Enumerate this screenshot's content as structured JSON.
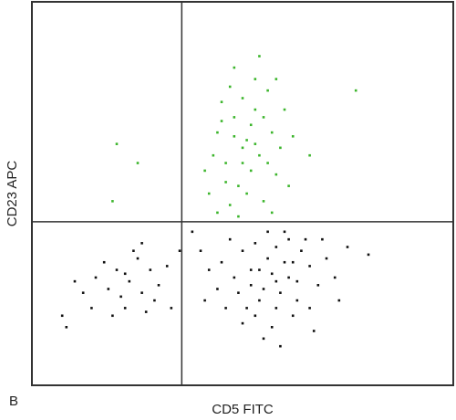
{
  "chart_data": {
    "type": "scatter",
    "panel_label": "B",
    "xlabel": "CD5 FITC",
    "ylabel": "CD23 APC",
    "xlim": [
      0,
      100
    ],
    "ylim": [
      0,
      100
    ],
    "gates": {
      "x": 35.5,
      "y": 42.6
    },
    "series": [
      {
        "color": "#3cb52c",
        "x": [
          51,
          48,
          54,
          46,
          57,
          50,
          44,
          53,
          49,
          58,
          42,
          47,
          55,
          60,
          52,
          45,
          56,
          50,
          43,
          59,
          48,
          53,
          46,
          61,
          41,
          54,
          49,
          57,
          52,
          45,
          62,
          50,
          47,
          55,
          44,
          51,
          58,
          48,
          53,
          56,
          20,
          25,
          19,
          77,
          66
        ],
        "values": [
          64,
          70,
          60,
          58,
          66,
          75,
          66,
          80,
          52,
          55,
          50,
          47,
          48,
          72,
          68,
          74,
          77,
          58,
          60,
          62,
          83,
          72,
          53,
          52,
          56,
          86,
          44,
          45,
          56,
          69,
          65,
          62,
          78,
          70,
          45,
          50,
          80,
          65,
          63,
          58,
          63,
          58,
          48,
          77,
          60
        ]
      },
      {
        "color": "#111111",
        "x": [
          57,
          55,
          60,
          52,
          63,
          58,
          50,
          61,
          54,
          66,
          48,
          59,
          62,
          53,
          56,
          64,
          51,
          68,
          45,
          57,
          60,
          47,
          70,
          55,
          63,
          42,
          58,
          52,
          66,
          49,
          72,
          40,
          61,
          54,
          65,
          59,
          44,
          75,
          38,
          67,
          56,
          50,
          73,
          62,
          46,
          80,
          41,
          53,
          69,
          58
        ],
        "values": [
          29,
          25,
          32,
          30,
          27,
          20,
          35,
          38,
          22,
          31,
          28,
          24,
          18,
          37,
          33,
          35,
          20,
          26,
          32,
          15,
          40,
          38,
          33,
          12,
          22,
          30,
          36,
          26,
          20,
          24,
          28,
          35,
          28,
          30,
          38,
          10,
          25,
          36,
          40,
          14,
          40,
          16,
          22,
          32,
          20,
          34,
          22,
          18,
          38,
          27
        ]
      },
      {
        "color": "#111111",
        "x": [
          23,
          20,
          26,
          18,
          28,
          22,
          25,
          15,
          30,
          21,
          27,
          17,
          24,
          12,
          32,
          19,
          29,
          10,
          33,
          22,
          7,
          35,
          14,
          26,
          8
        ],
        "values": [
          27,
          30,
          24,
          25,
          30,
          20,
          33,
          28,
          26,
          23,
          19,
          32,
          35,
          24,
          31,
          18,
          22,
          27,
          20,
          29,
          18,
          35,
          20,
          37,
          15
        ]
      }
    ]
  }
}
